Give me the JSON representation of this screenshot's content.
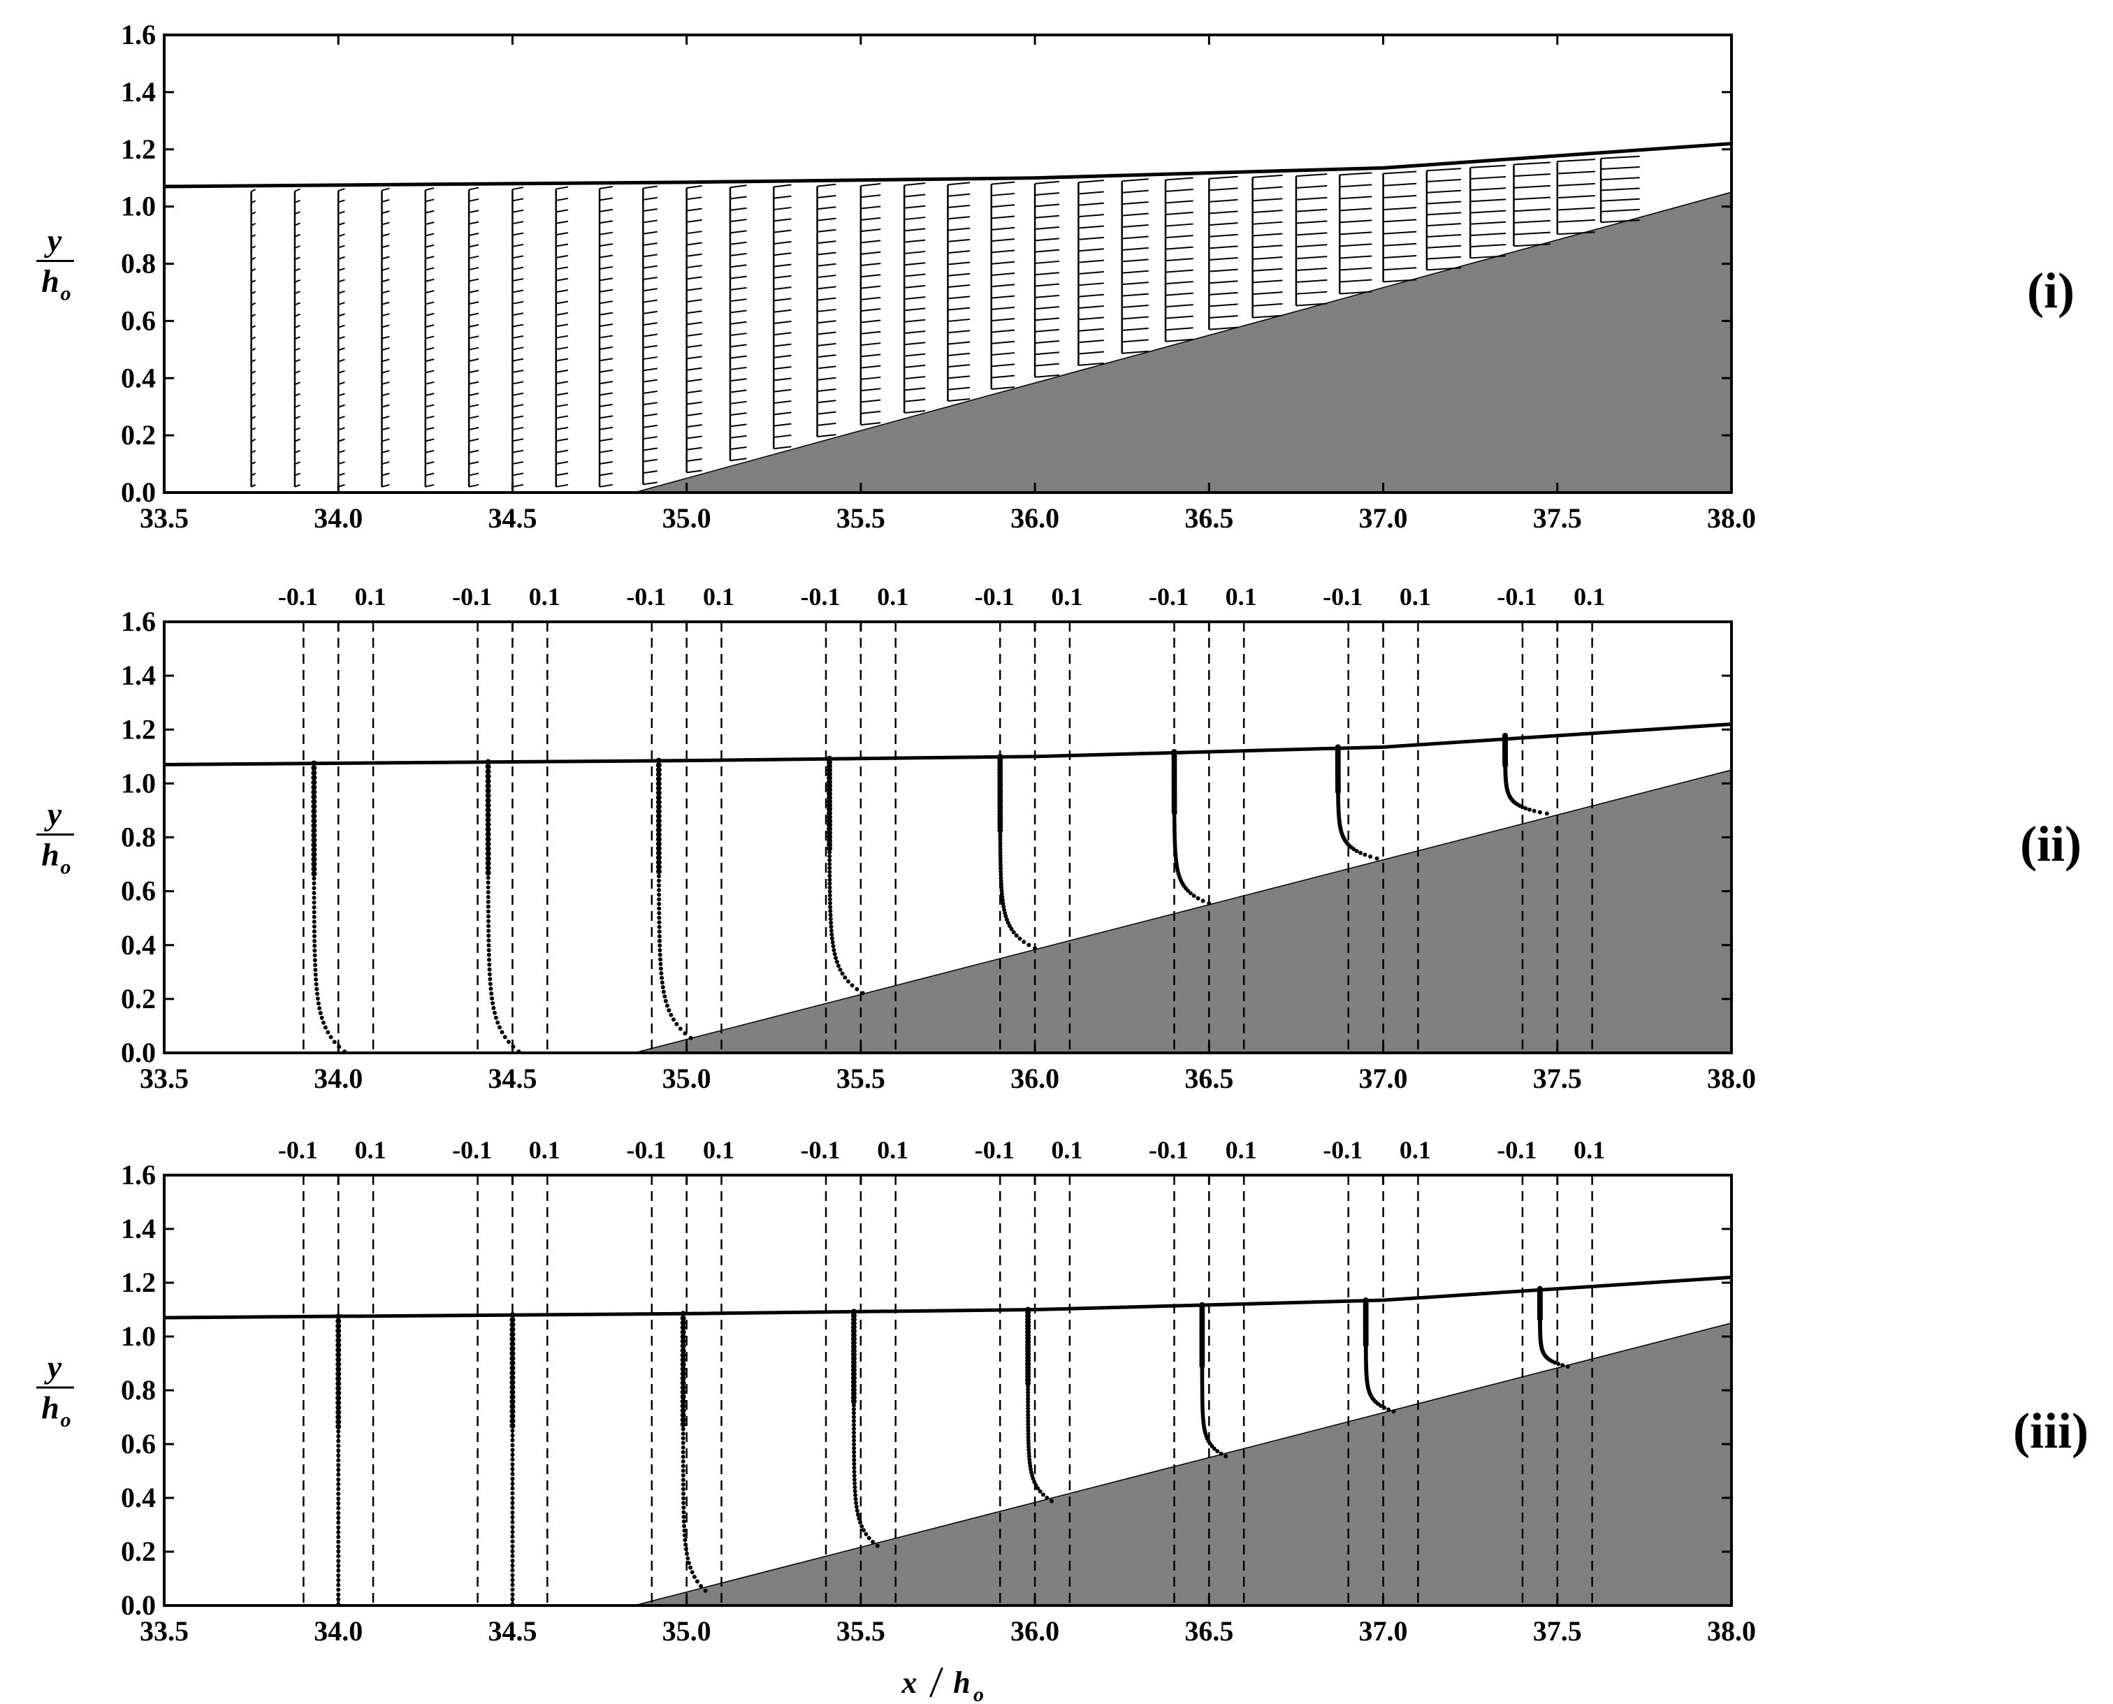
{
  "chart_data": [
    {
      "type": "scatter",
      "panel_label": "(i)",
      "ylabel": {
        "num": "y",
        "den": "h",
        "den_sub": "o"
      },
      "xlim": [
        33.5,
        38.0
      ],
      "ylim": [
        0.0,
        1.6
      ],
      "x_ticks": [
        "33.5",
        "34.0",
        "34.5",
        "35.0",
        "35.5",
        "36.0",
        "36.5",
        "37.0",
        "37.5",
        "38.0"
      ],
      "y_ticks": [
        "0.0",
        "0.2",
        "0.4",
        "0.6",
        "0.8",
        "1.0",
        "1.2",
        "1.4",
        "1.6"
      ],
      "free_surface": [
        [
          33.5,
          1.07
        ],
        [
          35.0,
          1.085
        ],
        [
          36.0,
          1.1
        ],
        [
          37.0,
          1.135
        ],
        [
          38.0,
          1.22
        ]
      ],
      "slope": [
        [
          34.85,
          0.0
        ],
        [
          38.0,
          1.05
        ]
      ],
      "vector_columns_x": [
        33.75,
        33.875,
        34.0,
        34.125,
        34.25,
        34.375,
        34.5,
        34.625,
        34.75,
        34.875,
        35.0,
        35.125,
        35.25,
        35.375,
        35.5,
        35.625,
        35.75,
        35.875,
        36.0,
        36.125,
        36.25,
        36.375,
        36.5,
        36.625,
        36.75,
        36.875,
        37.0,
        37.125,
        37.25,
        37.375,
        37.5,
        37.625
      ]
    },
    {
      "type": "scatter",
      "panel_label": "(ii)",
      "ylabel": {
        "num": "y",
        "den": "h",
        "den_sub": "o"
      },
      "xlim": [
        33.5,
        38.0
      ],
      "ylim": [
        0.0,
        1.6
      ],
      "x_ticks": [
        "33.5",
        "34.0",
        "34.5",
        "35.0",
        "35.5",
        "36.0",
        "36.5",
        "37.0",
        "37.5",
        "38.0"
      ],
      "y_ticks": [
        "0.0",
        "0.2",
        "0.4",
        "0.6",
        "0.8",
        "1.0",
        "1.2",
        "1.4",
        "1.6"
      ],
      "top_tick_labels": [
        "-0.1",
        "0.1"
      ],
      "profile_centers": [
        34.0,
        34.5,
        35.0,
        35.5,
        36.0,
        36.5,
        37.0,
        37.5
      ],
      "profile_offsets": [
        -0.07,
        -0.07,
        -0.08,
        -0.09,
        -0.1,
        -0.1,
        -0.13,
        -0.15
      ],
      "free_surface": [
        [
          33.5,
          1.07
        ],
        [
          35.0,
          1.085
        ],
        [
          36.0,
          1.1
        ],
        [
          37.0,
          1.135
        ],
        [
          38.0,
          1.22
        ]
      ],
      "slope": [
        [
          34.85,
          0.0
        ],
        [
          38.0,
          1.05
        ]
      ]
    },
    {
      "type": "scatter",
      "panel_label": "(iii)",
      "ylabel": {
        "num": "y",
        "den": "h",
        "den_sub": "o"
      },
      "xlabel": {
        "num": "x",
        "den": "h",
        "den_sub": "o"
      },
      "xlim": [
        33.5,
        38.0
      ],
      "ylim": [
        0.0,
        1.6
      ],
      "x_ticks": [
        "33.5",
        "34.0",
        "34.5",
        "35.0",
        "35.5",
        "36.0",
        "36.5",
        "37.0",
        "37.5",
        "38.0"
      ],
      "y_ticks": [
        "0.0",
        "0.2",
        "0.4",
        "0.6",
        "0.8",
        "1.0",
        "1.2",
        "1.4",
        "1.6"
      ],
      "top_tick_labels": [
        "-0.1",
        "0.1"
      ],
      "profile_centers": [
        34.0,
        34.5,
        35.0,
        35.5,
        36.0,
        36.5,
        37.0,
        37.5
      ],
      "profile_offsets": [
        0.0,
        0.0,
        -0.01,
        -0.02,
        -0.02,
        -0.02,
        -0.05,
        -0.05
      ],
      "free_surface": [
        [
          33.5,
          1.07
        ],
        [
          35.0,
          1.085
        ],
        [
          36.0,
          1.1
        ],
        [
          37.0,
          1.135
        ],
        [
          38.0,
          1.22
        ]
      ],
      "slope": [
        [
          34.85,
          0.0
        ],
        [
          38.0,
          1.05
        ]
      ]
    }
  ]
}
